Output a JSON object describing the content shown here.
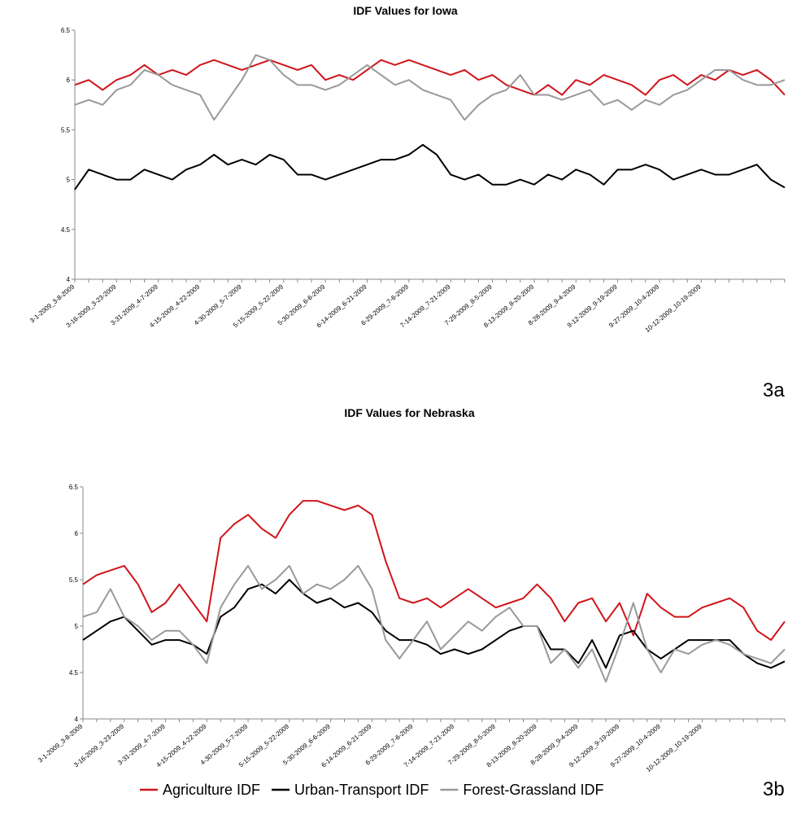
{
  "chart_data": [
    {
      "type": "line",
      "title": "IDF Values for Iowa",
      "panel_label": "3a",
      "categories": [
        "3-1-2009_3-8-2009",
        null,
        null,
        "3-16-2009_3-23-2009",
        null,
        null,
        "3-31-2009_4-7-2009",
        null,
        null,
        "4-15-2009_4-22-2009",
        null,
        null,
        "4-30-2009_5-7-2009",
        null,
        null,
        "5-15-2009_5-22-2009",
        null,
        null,
        "5-30-2009_6-6-2009",
        null,
        null,
        "6-14-2009_6-21-2009",
        null,
        null,
        "6-29-2009_7-6-2009",
        null,
        null,
        "7-14-2009_7-21-2009",
        null,
        null,
        "7-29-2009_8-5-2009",
        null,
        null,
        "8-13-2009_8-20-2009",
        null,
        null,
        "8-28-2009_9-4-2009",
        null,
        null,
        "9-12-2009_9-19-2009",
        null,
        null,
        "9-27-2009_10-4-2009",
        null,
        null,
        "10-12-2009_10-19-2009",
        null,
        null,
        null,
        null,
        null,
        null
      ],
      "ylim": [
        4,
        6.5
      ],
      "yticks": [
        4,
        4.5,
        5,
        5.5,
        6,
        6.5
      ],
      "grid": false,
      "series": [
        {
          "name": "Agriculture IDF",
          "color": "#d0141a",
          "values": [
            5.95,
            6.0,
            5.9,
            6.0,
            6.05,
            6.15,
            6.05,
            6.1,
            6.05,
            6.15,
            6.2,
            6.15,
            6.1,
            6.15,
            6.2,
            6.15,
            6.1,
            6.15,
            6.0,
            6.05,
            6.0,
            6.1,
            6.2,
            6.15,
            6.2,
            6.15,
            6.1,
            6.05,
            6.1,
            6.0,
            6.05,
            5.95,
            5.9,
            5.85,
            5.95,
            5.85,
            6.0,
            5.95,
            6.05,
            6.0,
            5.95,
            5.85,
            6.0,
            6.05,
            5.95,
            6.05,
            6.0,
            6.1,
            6.05,
            6.1,
            6.0,
            5.85
          ]
        },
        {
          "name": "Urban-Transport IDF",
          "color": "#000000",
          "values": [
            4.9,
            5.1,
            5.05,
            5.0,
            5.0,
            5.1,
            5.05,
            5.0,
            5.1,
            5.15,
            5.25,
            5.15,
            5.2,
            5.15,
            5.25,
            5.2,
            5.05,
            5.05,
            5.0,
            5.05,
            5.1,
            5.15,
            5.2,
            5.2,
            5.25,
            5.35,
            5.25,
            5.05,
            5.0,
            5.05,
            4.95,
            4.95,
            5.0,
            4.95,
            5.05,
            5.0,
            5.1,
            5.05,
            4.95,
            5.1,
            5.1,
            5.15,
            5.1,
            5.0,
            5.05,
            5.1,
            5.05,
            5.05,
            5.1,
            5.15,
            5.0,
            4.92
          ]
        },
        {
          "name": "Forest-Grassland IDF",
          "color": "#999999",
          "values": [
            5.75,
            5.8,
            5.75,
            5.9,
            5.95,
            6.1,
            6.05,
            5.95,
            5.9,
            5.85,
            5.6,
            5.8,
            6.0,
            6.25,
            6.2,
            6.05,
            5.95,
            5.95,
            5.9,
            5.95,
            6.05,
            6.15,
            6.05,
            5.95,
            6.0,
            5.9,
            5.85,
            5.8,
            5.6,
            5.75,
            5.85,
            5.9,
            6.05,
            5.85,
            5.85,
            5.8,
            5.85,
            5.9,
            5.75,
            5.8,
            5.7,
            5.8,
            5.75,
            5.85,
            5.9,
            6.0,
            6.1,
            6.1,
            6.0,
            5.95,
            5.95,
            6.0
          ]
        }
      ]
    },
    {
      "type": "line",
      "title": "IDF Values for Nebraska",
      "panel_label": "3b",
      "categories": [
        "3-1-2009_3-8-2009",
        null,
        null,
        "3-16-2009_3-23-2009",
        null,
        null,
        "3-31-2009_4-7-2009",
        null,
        null,
        "4-15-2009_4-22-2009",
        null,
        null,
        "4-30-2009_5-7-2009",
        null,
        null,
        "5-15-2009_5-22-2009",
        null,
        null,
        "5-30-2009_6-6-2009",
        null,
        null,
        "6-14-2009_6-21-2009",
        null,
        null,
        "6-29-2009_7-6-2009",
        null,
        null,
        "7-14-2009_7-21-2009",
        null,
        null,
        "7-29-2009_8-5-2009",
        null,
        null,
        "8-13-2009_8-20-2009",
        null,
        null,
        "8-28-2009_9-4-2009",
        null,
        null,
        "9-12-2009_9-19-2009",
        null,
        null,
        "9-27-2009_10-4-2009",
        null,
        null,
        "10-12-2009_10-19-2009",
        null,
        null,
        null,
        null,
        null,
        null
      ],
      "ylim": [
        4,
        6.5
      ],
      "yticks": [
        4,
        4.5,
        5,
        5.5,
        6,
        6.5
      ],
      "grid": false,
      "series": [
        {
          "name": "Agriculture IDF",
          "color": "#d0141a",
          "values": [
            5.45,
            5.55,
            5.6,
            5.65,
            5.45,
            5.15,
            5.25,
            5.45,
            5.25,
            5.05,
            5.95,
            6.1,
            6.2,
            6.05,
            5.95,
            6.2,
            6.35,
            6.35,
            6.3,
            6.25,
            6.3,
            6.2,
            5.7,
            5.3,
            5.25,
            5.3,
            5.2,
            5.3,
            5.4,
            5.3,
            5.2,
            5.25,
            5.3,
            5.45,
            5.3,
            5.05,
            5.25,
            5.3,
            5.05,
            5.25,
            4.9,
            5.35,
            5.2,
            5.1,
            5.1,
            5.2,
            5.25,
            5.3,
            5.2,
            4.95,
            4.85,
            5.05
          ]
        },
        {
          "name": "Urban-Transport IDF",
          "color": "#000000",
          "values": [
            4.85,
            4.95,
            5.05,
            5.1,
            4.95,
            4.8,
            4.85,
            4.85,
            4.8,
            4.7,
            5.1,
            5.2,
            5.4,
            5.45,
            5.35,
            5.5,
            5.35,
            5.25,
            5.3,
            5.2,
            5.25,
            5.15,
            4.95,
            4.85,
            4.85,
            4.8,
            4.7,
            4.75,
            4.7,
            4.75,
            4.85,
            4.95,
            5.0,
            5.0,
            4.75,
            4.75,
            4.6,
            4.85,
            4.55,
            4.9,
            4.95,
            4.75,
            4.65,
            4.75,
            4.85,
            4.85,
            4.85,
            4.85,
            4.7,
            4.6,
            4.55,
            4.62
          ]
        },
        {
          "name": "Forest-Grassland IDF",
          "color": "#999999",
          "values": [
            5.1,
            5.15,
            5.4,
            5.1,
            5.0,
            4.85,
            4.95,
            4.95,
            4.8,
            4.6,
            5.2,
            5.45,
            5.65,
            5.4,
            5.5,
            5.65,
            5.35,
            5.45,
            5.4,
            5.5,
            5.65,
            5.4,
            4.85,
            4.65,
            4.85,
            5.05,
            4.75,
            4.9,
            5.05,
            4.95,
            5.1,
            5.2,
            5.0,
            5.0,
            4.6,
            4.75,
            4.55,
            4.75,
            4.4,
            4.8,
            5.25,
            4.75,
            4.5,
            4.75,
            4.7,
            4.8,
            4.85,
            4.8,
            4.7,
            4.65,
            4.6,
            4.75
          ]
        }
      ]
    }
  ]
}
